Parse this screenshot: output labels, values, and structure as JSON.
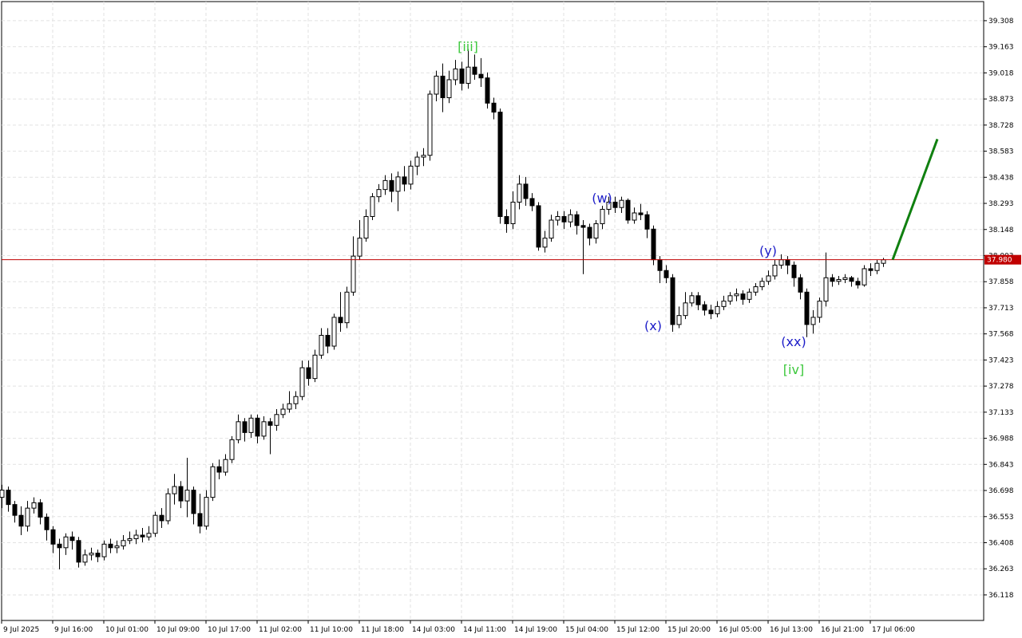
{
  "chart_data": {
    "type": "candlestick",
    "categories": [
      "9 Jul 2025",
      null,
      null,
      null,
      null,
      null,
      null,
      null,
      "9 Jul 16:00",
      null,
      null,
      null,
      null,
      null,
      null,
      null,
      "10 Jul 01:00",
      null,
      null,
      null,
      null,
      null,
      null,
      null,
      "10 Jul 09:00",
      null,
      null,
      null,
      null,
      null,
      null,
      null,
      "10 Jul 17:00",
      null,
      null,
      null,
      null,
      null,
      null,
      null,
      "11 Jul 02:00",
      null,
      null,
      null,
      null,
      null,
      null,
      null,
      "11 Jul 10:00",
      null,
      null,
      null,
      null,
      null,
      null,
      null,
      "11 Jul 18:00",
      null,
      null,
      null,
      null,
      null,
      null,
      null,
      "14 Jul 03:00",
      null,
      null,
      null,
      null,
      null,
      null,
      null,
      "14 Jul 11:00",
      null,
      null,
      null,
      null,
      null,
      null,
      null,
      "14 Jul 19:00",
      null,
      null,
      null,
      null,
      null,
      null,
      null,
      "15 Jul 04:00",
      null,
      null,
      null,
      null,
      null,
      null,
      null,
      "15 Jul 12:00",
      null,
      null,
      null,
      null,
      null,
      null,
      null,
      "15 Jul 20:00",
      null,
      null,
      null,
      null,
      null,
      null,
      null,
      "16 Jul 05:00",
      null,
      null,
      null,
      null,
      null,
      null,
      null,
      "16 Jul 13:00",
      null,
      null,
      null,
      null,
      null,
      null,
      null,
      "16 Jul 21:00",
      null,
      null,
      null,
      null,
      null,
      null,
      null,
      "17 Jul 06:00",
      null,
      null
    ],
    "open": [
      36.66,
      36.7,
      36.62,
      36.56,
      36.5,
      36.6,
      36.63,
      36.55,
      36.48,
      36.4,
      36.38,
      36.44,
      36.42,
      36.3,
      36.34,
      36.35,
      36.33,
      36.4,
      36.38,
      36.39,
      36.42,
      36.43,
      36.45,
      36.44,
      36.46,
      36.56,
      36.53,
      36.68,
      36.72,
      36.64,
      36.7,
      36.57,
      36.5,
      36.66,
      36.83,
      36.8,
      36.87,
      36.98,
      37.08,
      37.02,
      37.1,
      37.0,
      37.08,
      37.06,
      37.12,
      37.15,
      37.18,
      37.22,
      37.38,
      37.32,
      37.45,
      37.56,
      37.5,
      37.66,
      37.63,
      37.8,
      38.0,
      38.1,
      38.22,
      38.33,
      38.37,
      38.42,
      38.36,
      38.44,
      38.4,
      38.5,
      38.55,
      38.56,
      38.9,
      39.0,
      38.88,
      38.98,
      39.04,
      38.96,
      39.05,
      39.01,
      38.99,
      38.85,
      38.8,
      38.22,
      38.18,
      38.3,
      38.4,
      38.32,
      38.28,
      38.05,
      38.1,
      38.2,
      38.22,
      38.19,
      38.23,
      38.17,
      38.16,
      38.1,
      38.18,
      38.26,
      38.3,
      38.27,
      38.31,
      38.2,
      38.24,
      38.23,
      38.15,
      37.98,
      37.92,
      37.88,
      37.62,
      37.67,
      37.74,
      37.78,
      37.73,
      37.7,
      37.68,
      37.72,
      37.75,
      37.78,
      37.79,
      37.76,
      37.8,
      37.83,
      37.86,
      37.89,
      37.95,
      37.98,
      37.95,
      37.88,
      37.8,
      37.62,
      37.66,
      37.75,
      37.88,
      37.86,
      37.87,
      37.88,
      37.86,
      37.84,
      37.93,
      37.92,
      37.96
    ],
    "high": [
      36.73,
      36.72,
      36.64,
      36.61,
      36.64,
      36.66,
      36.65,
      36.57,
      36.5,
      36.43,
      36.46,
      36.47,
      36.44,
      36.37,
      36.38,
      36.37,
      36.42,
      36.43,
      36.42,
      36.45,
      36.47,
      36.48,
      36.49,
      36.5,
      36.58,
      36.6,
      36.71,
      36.79,
      36.75,
      36.88,
      36.72,
      36.68,
      36.7,
      36.85,
      36.87,
      36.9,
      37.0,
      37.12,
      37.1,
      37.12,
      37.12,
      37.11,
      37.1,
      37.15,
      37.18,
      37.25,
      37.25,
      37.42,
      37.42,
      37.48,
      37.6,
      37.6,
      37.68,
      37.8,
      37.83,
      38.11,
      38.2,
      38.26,
      38.35,
      38.4,
      38.45,
      38.46,
      38.47,
      38.5,
      38.53,
      38.58,
      38.6,
      38.92,
      39.03,
      39.07,
      39.03,
      39.09,
      39.08,
      39.15,
      39.12,
      39.1,
      39.02,
      38.88,
      38.82,
      38.26,
      38.36,
      38.45,
      38.44,
      38.35,
      38.3,
      38.14,
      38.23,
      38.25,
      38.25,
      38.26,
      38.25,
      38.2,
      38.18,
      38.2,
      38.28,
      38.33,
      38.33,
      38.33,
      38.32,
      38.27,
      38.29,
      38.25,
      38.17,
      38.0,
      37.95,
      37.9,
      37.72,
      37.8,
      37.8,
      37.8,
      37.75,
      37.73,
      37.75,
      37.78,
      37.8,
      37.82,
      37.81,
      37.82,
      37.85,
      37.88,
      37.92,
      37.98,
      38.01,
      38.0,
      37.97,
      37.9,
      37.82,
      37.7,
      37.77,
      38.02,
      37.9,
      37.89,
      37.9,
      37.89,
      37.88,
      37.95,
      37.96,
      37.98,
      37.99
    ],
    "low": [
      36.6,
      36.58,
      36.52,
      36.45,
      36.47,
      36.57,
      36.51,
      36.42,
      36.35,
      36.26,
      36.34,
      36.37,
      36.27,
      36.28,
      36.31,
      36.3,
      36.31,
      36.35,
      36.35,
      36.37,
      36.4,
      36.4,
      36.41,
      36.42,
      36.44,
      36.49,
      36.51,
      36.62,
      36.6,
      36.55,
      36.51,
      36.46,
      36.48,
      36.64,
      36.76,
      36.78,
      36.85,
      36.96,
      36.97,
      36.99,
      36.96,
      36.98,
      36.9,
      37.03,
      37.1,
      37.13,
      37.15,
      37.2,
      37.28,
      37.3,
      37.43,
      37.46,
      37.48,
      37.58,
      37.6,
      37.78,
      37.98,
      38.08,
      38.2,
      38.3,
      38.34,
      38.3,
      38.25,
      38.36,
      38.37,
      38.45,
      38.5,
      38.53,
      38.86,
      38.8,
      38.85,
      38.95,
      38.92,
      38.93,
      38.98,
      38.94,
      38.82,
      38.76,
      38.18,
      38.13,
      38.15,
      38.26,
      38.28,
      38.25,
      38.03,
      38.02,
      38.08,
      38.17,
      38.15,
      38.16,
      38.12,
      37.9,
      38.06,
      38.07,
      38.15,
      38.23,
      38.24,
      38.24,
      38.18,
      38.18,
      38.2,
      38.1,
      37.95,
      37.85,
      37.85,
      37.58,
      37.6,
      37.65,
      37.72,
      37.7,
      37.67,
      37.65,
      37.66,
      37.7,
      37.73,
      37.75,
      37.73,
      37.74,
      37.78,
      37.81,
      37.84,
      37.87,
      37.93,
      37.9,
      37.83,
      37.76,
      37.55,
      37.57,
      37.63,
      37.72,
      37.83,
      37.84,
      37.85,
      37.83,
      37.82,
      37.83,
      37.89,
      37.9,
      37.94
    ],
    "close": [
      36.7,
      36.62,
      36.56,
      36.5,
      36.6,
      36.63,
      36.55,
      36.48,
      36.4,
      36.38,
      36.44,
      36.42,
      36.3,
      36.34,
      36.35,
      36.33,
      36.4,
      36.38,
      36.39,
      36.42,
      36.43,
      36.45,
      36.44,
      36.46,
      36.56,
      36.53,
      36.68,
      36.72,
      36.64,
      36.7,
      36.57,
      36.5,
      36.66,
      36.83,
      36.8,
      36.87,
      36.98,
      37.08,
      37.02,
      37.1,
      37.0,
      37.08,
      37.06,
      37.12,
      37.15,
      37.18,
      37.22,
      37.38,
      37.32,
      37.45,
      37.56,
      37.5,
      37.66,
      37.63,
      37.8,
      38.0,
      38.1,
      38.22,
      38.33,
      38.37,
      38.42,
      38.36,
      38.44,
      38.4,
      38.5,
      38.55,
      38.56,
      38.9,
      39.0,
      38.88,
      38.98,
      39.04,
      38.96,
      39.05,
      39.01,
      38.99,
      38.85,
      38.8,
      38.22,
      38.18,
      38.3,
      38.4,
      38.32,
      38.28,
      38.05,
      38.1,
      38.2,
      38.22,
      38.19,
      38.23,
      38.17,
      38.16,
      38.1,
      38.18,
      38.26,
      38.3,
      38.27,
      38.31,
      38.2,
      38.24,
      38.23,
      38.15,
      37.98,
      37.92,
      37.88,
      37.62,
      37.67,
      37.74,
      37.78,
      37.73,
      37.7,
      37.68,
      37.72,
      37.75,
      37.78,
      37.79,
      37.76,
      37.8,
      37.83,
      37.86,
      37.89,
      37.95,
      37.98,
      37.95,
      37.88,
      37.8,
      37.62,
      37.66,
      37.75,
      37.88,
      37.86,
      37.87,
      37.88,
      37.86,
      37.84,
      37.93,
      37.92,
      37.96,
      37.98
    ],
    "up_color": "#ffffff",
    "down_color": "#000000",
    "ylim": [
      35.976,
      39.414
    ],
    "yticks": [
      36.118,
      36.263,
      36.408,
      36.553,
      36.698,
      36.843,
      36.988,
      37.133,
      37.278,
      37.423,
      37.568,
      37.713,
      37.858,
      38.003,
      38.148,
      38.293,
      38.438,
      38.583,
      38.728,
      38.873,
      39.018,
      39.163,
      39.308
    ],
    "grid": true,
    "price_line": {
      "value": 37.98,
      "value_label": "37.980",
      "color": "#c00000"
    },
    "forecast": {
      "x": [
        139.5,
        146.5
      ],
      "values": [
        37.98,
        38.65
      ],
      "color": "#108010"
    },
    "annotations": [
      {
        "text": "[iii]",
        "color": "#3cc83c"
      },
      {
        "text": "(w)",
        "color": "#1c1cc8"
      },
      {
        "text": "(x)",
        "color": "#1c1cc8"
      },
      {
        "text": "(y)",
        "color": "#1c1cc8"
      },
      {
        "text": "(xx)",
        "color": "#1c1cc8"
      },
      {
        "text": "[iv]",
        "color": "#3cc83c"
      }
    ]
  }
}
